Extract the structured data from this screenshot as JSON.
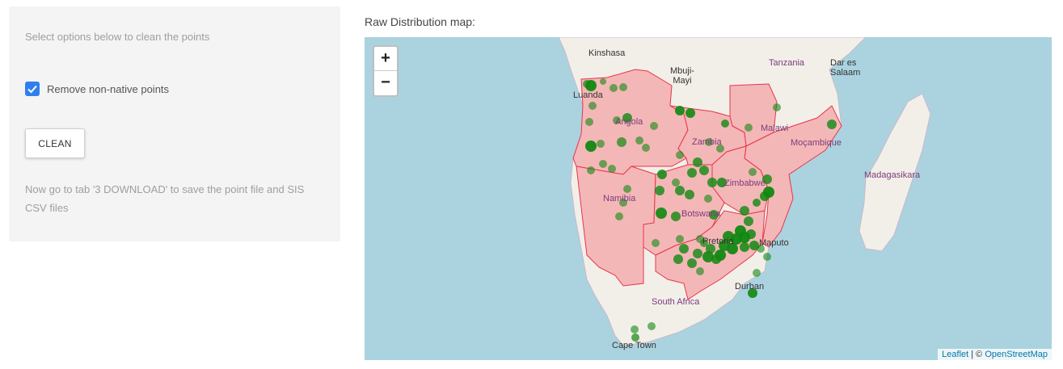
{
  "left_panel": {
    "instruction": "Select options below to clean the points",
    "checkbox_label": "Remove non-native points",
    "checkbox_checked": true,
    "clean_button": "CLEAN",
    "note": "Now go to tab '3 DOWNLOAD' to save the point file and SIS CSV files"
  },
  "map": {
    "title": "Raw Distribution map:",
    "zoom_in": "+",
    "zoom_out": "−",
    "attribution_leaflet": "Leaflet",
    "attribution_sep": " | © ",
    "attribution_osm": "OpenStreetMap",
    "labels": {
      "kinshasa": "Kinshasa",
      "luanda": "Luanda",
      "mbuji": "Mbuji-\nMayi",
      "tanzania": "Tanzania",
      "dar": "Dar es\nSalaam",
      "angola": "Angola",
      "zambia": "Zambia",
      "malawi": "Malawi",
      "mocambique": "Moçambique",
      "madagasikara": "Madagasikara",
      "namibia": "Namibia",
      "zimbabwe": "Zimbabwe",
      "botswana": "Botswana",
      "pretoria": "Pretoria",
      "maputo": "Maputo",
      "durban": "Durban",
      "south_africa": "South Africa",
      "cape_town": "Cape Town"
    },
    "colors": {
      "ocean": "#aad3df",
      "land": "#f2efe9",
      "highlight": "#f4b7b7",
      "border": "#e8354b",
      "point": "#118811"
    }
  }
}
